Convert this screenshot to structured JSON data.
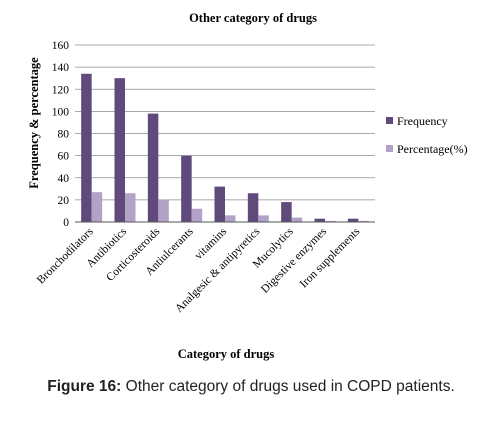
{
  "chart_data": {
    "type": "bar",
    "title": "Other category of drugs",
    "xlabel": "Category of drugs",
    "ylabel": "Frequency & percentage",
    "ylim": [
      0,
      160
    ],
    "yticks": [
      0,
      20,
      40,
      60,
      80,
      100,
      120,
      140,
      160
    ],
    "categories": [
      "Bronchodilators",
      "Antibiotics",
      "Corticosteroids",
      "Antiulcerants",
      "vitamins",
      "Analgesic & antipyretics",
      "Mucolytics",
      "Digestive enzymes",
      "Iron supplements"
    ],
    "series": [
      {
        "name": "Frequency",
        "values": [
          134,
          130,
          98,
          60,
          32,
          26,
          18,
          3,
          3
        ],
        "color": "#604a7b"
      },
      {
        "name": "Percentage(%)",
        "values": [
          27,
          26,
          20,
          12,
          6,
          6,
          4,
          1,
          1
        ],
        "color": "#b3a2c7"
      }
    ],
    "grid": true,
    "legend_position": "right"
  },
  "caption": {
    "label": "Figure 16:",
    "text": " Other category of drugs used in COPD patients."
  },
  "colors": {
    "frequency": "#604a7b",
    "percentage": "#b3a2c7",
    "grid": "#8c8c8c"
  }
}
